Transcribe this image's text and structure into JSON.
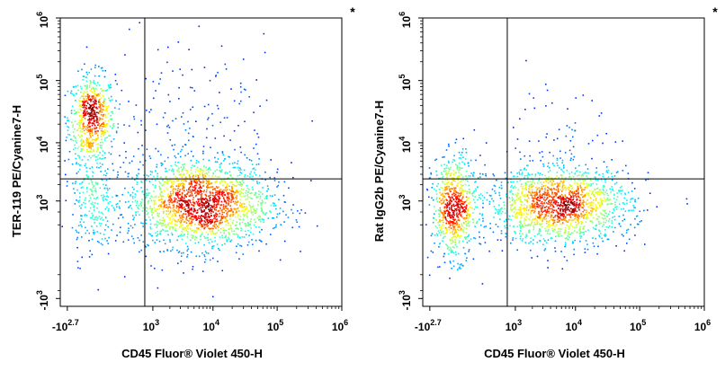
{
  "chart_data": [
    {
      "type": "scatter",
      "style": "flow-cytometry-density-dot-plot",
      "corner_mark": "*",
      "xlabel": "CD45 Fluor® Violet 450-H",
      "ylabel": "TER-119 PE/Cyanine7-H",
      "x_scale": "biexponential",
      "y_scale": "biexponential",
      "x_ticks": [
        {
          "base": "-10",
          "exp": "2.7",
          "value": -500
        },
        {
          "base": "10",
          "exp": "3",
          "value": 1000
        },
        {
          "base": "10",
          "exp": "4",
          "value": 10000
        },
        {
          "base": "10",
          "exp": "5",
          "value": 100000
        },
        {
          "base": "10",
          "exp": "6",
          "value": 1000000
        }
      ],
      "y_ticks": [
        {
          "base": "-10",
          "exp": "3",
          "value": -1000
        },
        {
          "base": "10",
          "exp": "3",
          "value": 1000
        },
        {
          "base": "10",
          "exp": "4",
          "value": 10000
        },
        {
          "base": "10",
          "exp": "5",
          "value": 100000
        },
        {
          "base": "10",
          "exp": "6",
          "value": 1000000
        }
      ],
      "gate_x": 700,
      "gate_y": 2500,
      "populations": [
        {
          "x": -100,
          "y": 25000,
          "spread_x": 0.18,
          "spread_y": 0.35,
          "count": 650
        },
        {
          "x": 6000,
          "y": 900,
          "spread_x": 0.55,
          "spread_y": 0.35,
          "count": 1900
        },
        {
          "x": -100,
          "y": 1000,
          "spread_x": 0.16,
          "spread_y": 0.45,
          "count": 220
        },
        {
          "x": 5000,
          "y": 10000,
          "spread_x": 0.8,
          "spread_y": 0.9,
          "count": 220
        }
      ]
    },
    {
      "type": "scatter",
      "style": "flow-cytometry-density-dot-plot",
      "corner_mark": "*",
      "xlabel": "CD45 Fluor® Violet 450-H",
      "ylabel": "Rat IgG2b PE/Cyanine7-H",
      "x_scale": "biexponential",
      "y_scale": "biexponential",
      "x_ticks": [
        {
          "base": "-10",
          "exp": "2.7",
          "value": -500
        },
        {
          "base": "10",
          "exp": "3",
          "value": 1000
        },
        {
          "base": "10",
          "exp": "4",
          "value": 10000
        },
        {
          "base": "10",
          "exp": "5",
          "value": 100000
        },
        {
          "base": "10",
          "exp": "6",
          "value": 1000000
        }
      ],
      "y_ticks": [
        {
          "base": "-10",
          "exp": "3",
          "value": -1000
        },
        {
          "base": "10",
          "exp": "3",
          "value": 1000
        },
        {
          "base": "10",
          "exp": "4",
          "value": 10000
        },
        {
          "base": "10",
          "exp": "5",
          "value": 100000
        },
        {
          "base": "10",
          "exp": "6",
          "value": 1000000
        }
      ],
      "gate_x": 700,
      "gate_y": 2500,
      "populations": [
        {
          "x": -100,
          "y": 750,
          "spread_x": 0.17,
          "spread_y": 0.4,
          "count": 750
        },
        {
          "x": 5500,
          "y": 850,
          "spread_x": 0.55,
          "spread_y": 0.3,
          "count": 1600
        },
        {
          "x": 6000,
          "y": 8000,
          "spread_x": 0.5,
          "spread_y": 0.6,
          "count": 90
        }
      ]
    }
  ]
}
